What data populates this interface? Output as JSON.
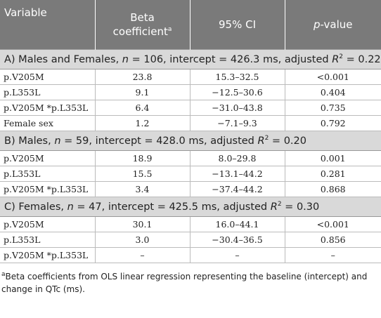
{
  "header": {
    "variable": "Variable",
    "beta": "Beta coefficient",
    "beta_note": "a",
    "ci": "95% CI",
    "p_symbol": "p",
    "p_rest": "-value"
  },
  "sections": [
    {
      "title": {
        "label": "A) Males and Females, ",
        "n_symbol": "n",
        "n_text": " = 106, intercept = 426.3 ms, adjusted ",
        "r_symbol": "R",
        "r_exp": "2",
        "r_text": " = 0.22"
      },
      "rows": [
        [
          "p.V205M",
          "23.8",
          "15.3–32.5",
          "<0.001"
        ],
        [
          "p.L353L",
          "9.1",
          "−12.5–30.6",
          "0.404"
        ],
        [
          "p.V205M *p.L353L",
          "6.4",
          "−31.0–43.8",
          "0.735"
        ],
        [
          "Female sex",
          "1.2",
          "−7.1–9.3",
          "0.792"
        ]
      ]
    },
    {
      "title": {
        "label": "B) Males, ",
        "n_symbol": "n",
        "n_text": " = 59, intercept = 428.0 ms, adjusted ",
        "r_symbol": "R",
        "r_exp": "2",
        "r_text": " = 0.20"
      },
      "rows": [
        [
          "p.V205M",
          "18.9",
          "8.0–29.8",
          "0.001"
        ],
        [
          "p.L353L",
          "15.5",
          "−13.1–44.2",
          "0.281"
        ],
        [
          "p.V205M *p.L353L",
          "3.4",
          "−37.4–44.2",
          "0.868"
        ]
      ]
    },
    {
      "title": {
        "label": "C) Females, ",
        "n_symbol": "n",
        "n_text": " = 47, intercept = 425.5 ms, adjusted ",
        "r_symbol": "R",
        "r_exp": "2",
        "r_text": " = 0.30"
      },
      "rows": [
        [
          "p.V205M",
          "30.1",
          "16.0–44.1",
          "<0.001"
        ],
        [
          "p.L353L",
          "3.0",
          "−30.4–36.5",
          "0.856"
        ],
        [
          "p.V205M *p.L353L",
          "–",
          "–",
          "–"
        ]
      ]
    }
  ],
  "footnote": {
    "mark": "a",
    "text": "Beta coefficients from OLS linear regression representing the baseline (intercept) and change in QTc (ms)."
  }
}
